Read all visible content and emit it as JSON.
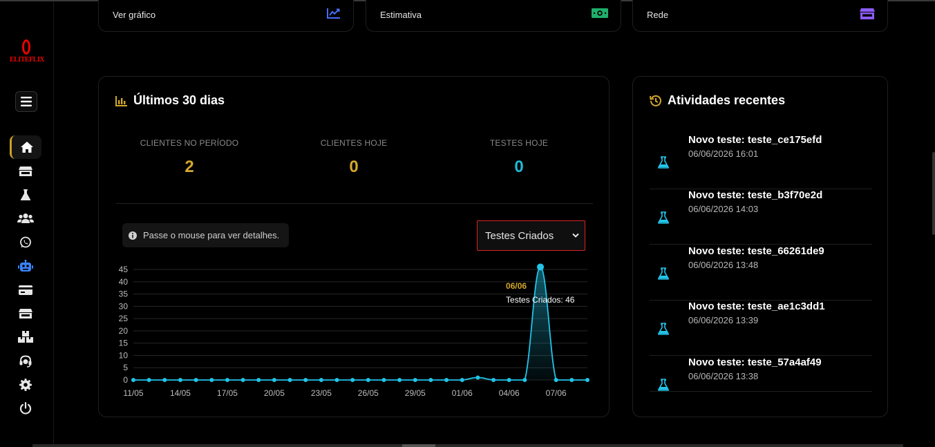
{
  "app": {
    "logo_text": "ELITEFLIX"
  },
  "top_cards": [
    {
      "label": "Ver gráfico",
      "icon": "chart-line-icon",
      "color": "#4a6cf7"
    },
    {
      "label": "Estimativa",
      "icon": "money-bill-icon",
      "color": "#1fae6b"
    },
    {
      "label": "Rede",
      "icon": "store-icon",
      "color": "#8b5cf6"
    }
  ],
  "sidebar": {
    "items": [
      {
        "name": "home",
        "icon": "home-icon",
        "active": true
      },
      {
        "name": "store",
        "icon": "store-icon"
      },
      {
        "name": "tests",
        "icon": "flask-icon"
      },
      {
        "name": "users",
        "icon": "users-icon"
      },
      {
        "name": "whatsapp",
        "icon": "whatsapp-icon"
      },
      {
        "name": "bot",
        "icon": "robot-icon",
        "color": "#3b82f6"
      },
      {
        "name": "payments",
        "icon": "credit-card-icon"
      },
      {
        "name": "shop",
        "icon": "store-icon"
      },
      {
        "name": "packages",
        "icon": "boxes-icon"
      },
      {
        "name": "support",
        "icon": "headset-icon"
      },
      {
        "name": "settings",
        "icon": "gear-icon"
      },
      {
        "name": "logout",
        "icon": "power-icon"
      }
    ]
  },
  "stats_panel": {
    "title": "Últimos 30 dias",
    "stats": [
      {
        "label": "CLIENTES NO PERÍODO",
        "value": "2",
        "color": "#d4a82a"
      },
      {
        "label": "CLIENTES HOJE",
        "value": "0",
        "color": "#d4a82a"
      },
      {
        "label": "TESTES HOJE",
        "value": "0",
        "color": "#22b8d8"
      }
    ],
    "hint": "Passe o mouse para ver detalhes.",
    "select_value": "Testes Criados"
  },
  "chart_data": {
    "type": "area",
    "series": [
      {
        "name": "Testes Criados",
        "values": [
          0,
          0,
          0,
          0,
          0,
          0,
          0,
          0,
          0,
          0,
          0,
          0,
          0,
          0,
          0,
          0,
          0,
          0,
          0,
          0,
          0,
          0,
          1,
          0,
          0,
          0,
          46,
          0,
          0,
          0
        ]
      }
    ],
    "x_tick_labels": [
      "11/05",
      "14/05",
      "17/05",
      "20/05",
      "23/05",
      "26/05",
      "29/05",
      "01/06",
      "04/06",
      "07/06"
    ],
    "y_ticks": [
      0,
      5,
      10,
      15,
      20,
      25,
      30,
      35,
      40,
      45
    ],
    "ylim": [
      0,
      45
    ],
    "grid": true,
    "color": "#22c4e8",
    "tooltip": {
      "date": "06/06",
      "text": "Testes Criados: 46"
    }
  },
  "activity_panel": {
    "title": "Atividades recentes",
    "items": [
      {
        "title": "Novo teste: teste_ce175efd",
        "date": "06/06/2026 16:01"
      },
      {
        "title": "Novo teste: teste_b3f70e2d",
        "date": "06/06/2026 14:03"
      },
      {
        "title": "Novo teste: teste_66261de9",
        "date": "06/06/2026 13:48"
      },
      {
        "title": "Novo teste: teste_ae1c3dd1",
        "date": "06/06/2026 13:39"
      },
      {
        "title": "Novo teste: teste_57a4af49",
        "date": "06/06/2026 13:38"
      }
    ]
  }
}
